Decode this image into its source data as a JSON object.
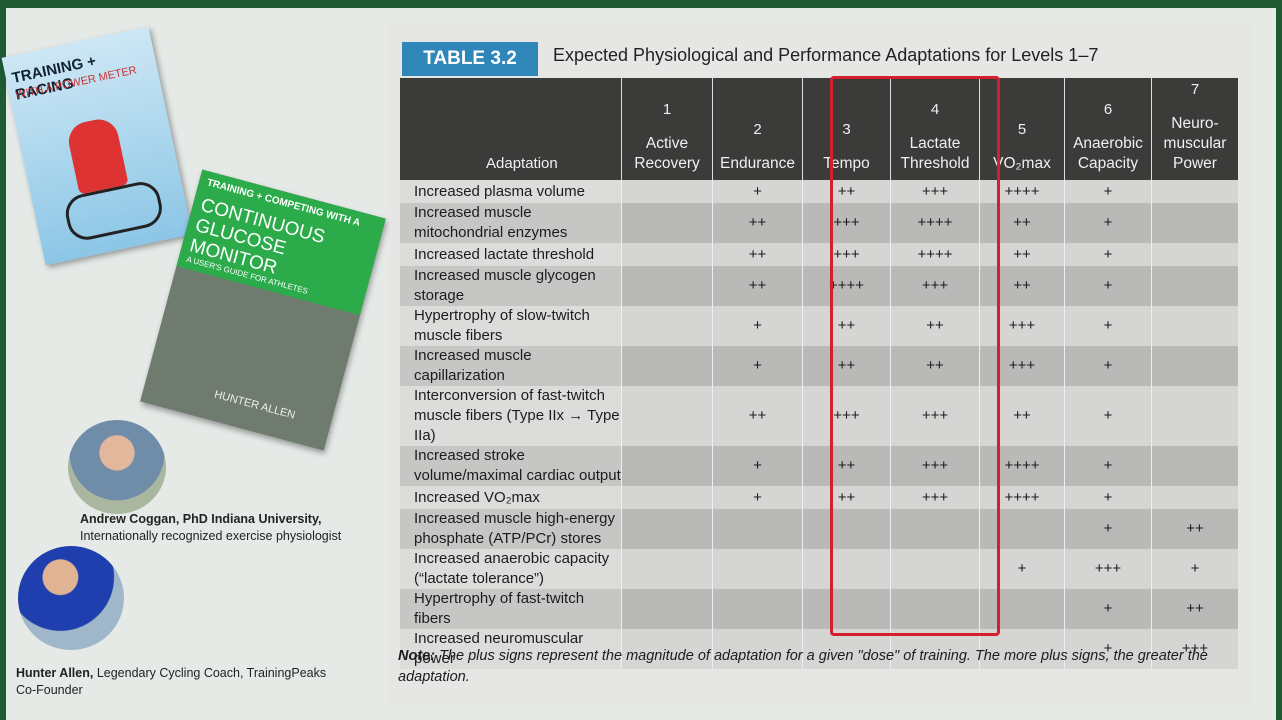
{
  "books": [
    {
      "title": "TRAINING + RACING",
      "subtitle": "WITH A POWER METER"
    },
    {
      "title": "TRAINING + COMPETING WITH A",
      "subtitle": "CONTINUOUS GLUCOSE MONITOR",
      "tagline": "A USER'S GUIDE FOR ATHLETES",
      "author": "HUNTER ALLEN"
    }
  ],
  "people": [
    {
      "name": "Andrew Coggan, PhD Indiana University,",
      "description": "Internationally recognized exercise physiologist"
    },
    {
      "name": "Hunter Allen,",
      "description": "Legendary Cycling Coach, TrainingPeaks Co-Founder"
    }
  ],
  "table": {
    "label": "TABLE 3.2",
    "title": "Expected Physiological and Performance Adaptations for Levels 1–7",
    "header": "Adaptation",
    "levels": [
      {
        "number": "1",
        "name": "Active Recovery"
      },
      {
        "number": "2",
        "name": "Endurance"
      },
      {
        "number": "3",
        "name": "Tempo"
      },
      {
        "number": "4",
        "name": "Lactate Threshold"
      },
      {
        "number": "5",
        "name": "VO₂max"
      },
      {
        "number": "6",
        "name": "Anaerobic Capacity"
      },
      {
        "number": "7",
        "name": "Neuro-muscular Power"
      }
    ],
    "rows": [
      [
        "Increased plasma volume",
        null,
        "+",
        "++",
        "+++",
        "++++",
        "+",
        null
      ],
      [
        "Increased muscle mitochondrial enzymes",
        null,
        "++",
        "+++",
        "++++",
        "++",
        "+",
        null
      ],
      [
        "Increased lactate threshold",
        null,
        "++",
        "+++",
        "++++",
        "++",
        "+",
        null
      ],
      [
        "Increased muscle glycogen storage",
        null,
        "++",
        "++++",
        "+++",
        "++",
        "+",
        null
      ],
      [
        "Hypertrophy of slow-twitch muscle fibers",
        null,
        "+",
        "++",
        "++",
        "+++",
        "+",
        null
      ],
      [
        "Increased muscle capillarization",
        null,
        "+",
        "++",
        "++",
        "+++",
        "+",
        null
      ],
      [
        "Interconversion of fast-twitch muscle fibers (Type IIx → Type IIa)",
        null,
        "++",
        "+++",
        "+++",
        "++",
        "+",
        null
      ],
      [
        "Increased stroke volume/maximal cardiac output",
        null,
        "+",
        "++",
        "+++",
        "++++",
        "+",
        null
      ],
      [
        "Increased VO₂max",
        null,
        "+",
        "++",
        "+++",
        "++++",
        "+",
        null
      ],
      [
        "Increased muscle high-energy phosphate (ATP/PCr) stores",
        null,
        null,
        null,
        null,
        null,
        "+",
        "++"
      ],
      [
        "Increased anaerobic capacity (“lactate tolerance”)",
        null,
        null,
        null,
        null,
        "+",
        "+++",
        "+"
      ],
      [
        "Hypertrophy of fast-twitch fibers",
        null,
        null,
        null,
        null,
        null,
        "+",
        "++"
      ],
      [
        "Increased neuromuscular power",
        null,
        null,
        null,
        null,
        null,
        "+",
        "+++"
      ]
    ],
    "note_label": "Note:",
    "note": "The plus signs represent the magnitude of adaptation for a given \"dose\" of training. The more plus signs, the greater the adaptation."
  }
}
